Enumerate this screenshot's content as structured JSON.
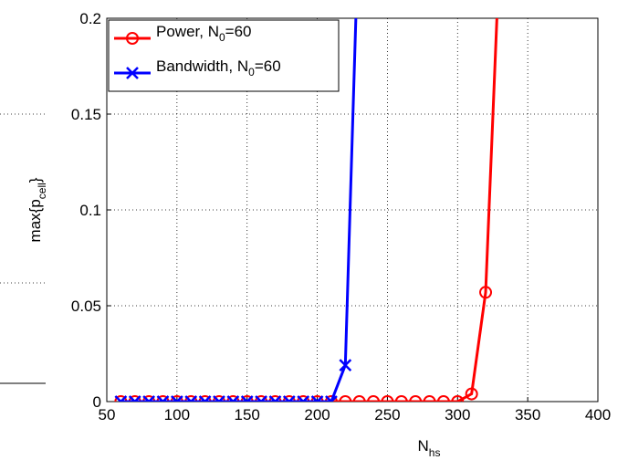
{
  "chart_data": {
    "type": "line",
    "xlabel": [
      "N",
      "hs"
    ],
    "ylabel": [
      "max{p",
      "cell",
      "}"
    ],
    "series": [
      {
        "name": [
          "Power, N",
          "0",
          "=60"
        ],
        "color": "#ff0000",
        "marker": "circle",
        "x": [
          60,
          70,
          80,
          90,
          100,
          110,
          120,
          130,
          140,
          150,
          160,
          170,
          180,
          190,
          200,
          210,
          220,
          230,
          240,
          250,
          260,
          270,
          280,
          290,
          300,
          310,
          320,
          330
        ],
        "values": [
          0,
          0,
          0,
          0,
          0,
          0,
          0,
          0,
          0,
          0,
          0,
          0,
          0,
          0,
          0,
          0,
          0,
          0,
          0,
          0,
          0,
          0,
          0,
          0,
          0,
          0.004,
          0.057,
          0.235
        ]
      },
      {
        "name": [
          "Bandwidth, N",
          "0",
          "=60"
        ],
        "color": "#0000ff",
        "marker": "x",
        "x": [
          60,
          70,
          80,
          90,
          100,
          110,
          120,
          130,
          140,
          150,
          160,
          170,
          180,
          190,
          200,
          210,
          220,
          230
        ],
        "values": [
          0,
          0,
          0,
          0,
          0,
          0,
          0,
          0,
          0,
          0,
          0,
          0,
          0,
          0,
          0,
          0,
          0.019,
          0.26
        ]
      }
    ],
    "xlim": [
      50,
      400
    ],
    "xticks": [
      50,
      100,
      150,
      200,
      250,
      300,
      350,
      400
    ],
    "ylim": [
      0,
      0.2
    ],
    "yticks": [
      0,
      0.05,
      0.1,
      0.15,
      0.2
    ],
    "grid": true,
    "legend": "upper left"
  }
}
